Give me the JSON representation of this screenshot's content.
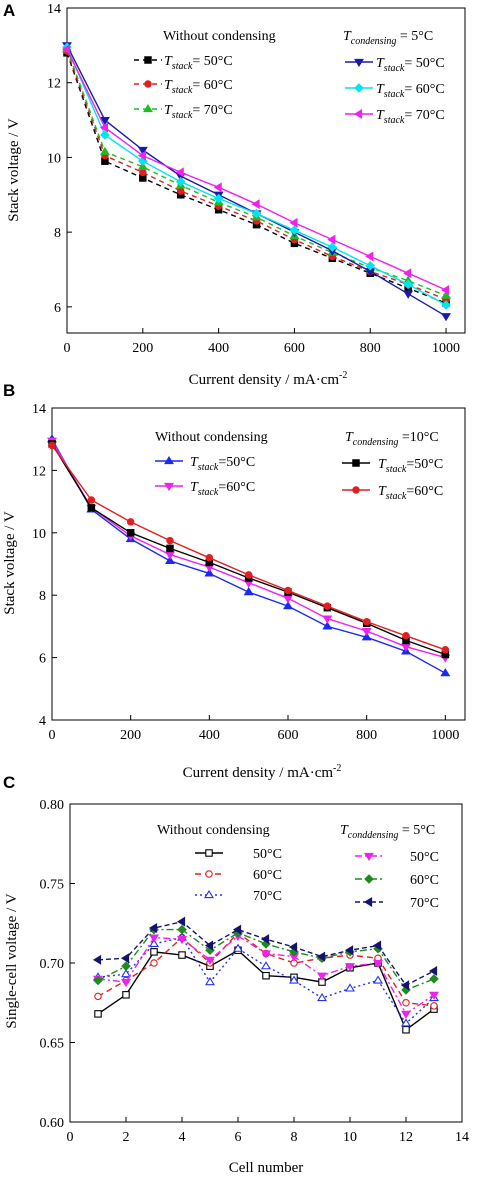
{
  "chart_data": [
    {
      "panel": "A",
      "type": "line",
      "xlabel": "Current density / mA·cm",
      "xlabel_sup": "-2",
      "ylabel": "Stack voltage / V",
      "xlim": [
        0,
        1050
      ],
      "ylim": [
        5.3,
        14
      ],
      "xticks": [
        0,
        200,
        400,
        600,
        800,
        1000
      ],
      "yticks": [
        6,
        8,
        10,
        12,
        14
      ],
      "x": [
        0,
        100,
        200,
        300,
        400,
        500,
        600,
        700,
        800,
        900,
        1000
      ],
      "legend_groups": [
        {
          "title": "Without condensing"
        },
        {
          "title_main": "T",
          "title_sub": "condensing",
          "title_value": " = 5°C"
        }
      ],
      "series": [
        {
          "name": "= 50°C",
          "name_prefix": "T",
          "name_sub": "stack",
          "group": 0,
          "color": "#000000",
          "dash": "5,4",
          "marker": "square",
          "fill": true,
          "values": [
            12.8,
            9.9,
            9.45,
            9.0,
            8.6,
            8.2,
            7.7,
            7.3,
            6.9,
            6.5,
            6.1
          ]
        },
        {
          "name": "= 60°C",
          "name_prefix": "T",
          "name_sub": "stack",
          "group": 0,
          "color": "#e02020",
          "dash": "5,4",
          "marker": "circle",
          "fill": true,
          "values": [
            12.85,
            10.05,
            9.6,
            9.1,
            8.7,
            8.3,
            7.8,
            7.35,
            6.95,
            6.6,
            6.2
          ]
        },
        {
          "name": "= 70°C",
          "name_prefix": "T",
          "name_sub": "stack",
          "group": 0,
          "color": "#22bb22",
          "dash": "5,4",
          "marker": "triangle-up",
          "fill": true,
          "values": [
            12.9,
            10.15,
            9.75,
            9.25,
            8.8,
            8.4,
            7.9,
            7.45,
            7.05,
            6.7,
            6.3
          ]
        },
        {
          "name": "= 50°C",
          "name_prefix": "T",
          "name_sub": "stack",
          "group": 1,
          "color": "#1a1aaa",
          "dash": "",
          "marker": "triangle-down",
          "fill": true,
          "values": [
            13.0,
            11.0,
            10.2,
            9.5,
            9.0,
            8.5,
            8.0,
            7.5,
            6.95,
            6.35,
            5.75
          ]
        },
        {
          "name": "= 60°C",
          "name_prefix": "T",
          "name_sub": "stack",
          "group": 1,
          "color": "#00e5ee",
          "dash": "",
          "marker": "diamond",
          "fill": true,
          "values": [
            12.95,
            10.6,
            9.9,
            9.35,
            8.9,
            8.5,
            8.05,
            7.6,
            7.1,
            6.6,
            6.05
          ]
        },
        {
          "name": "= 70°C",
          "name_prefix": "T",
          "name_sub": "stack",
          "group": 1,
          "color": "#ee22ee",
          "dash": "",
          "marker": "triangle-left",
          "fill": true,
          "values": [
            12.9,
            10.8,
            10.05,
            9.6,
            9.2,
            8.75,
            8.25,
            7.8,
            7.35,
            6.9,
            6.45
          ]
        }
      ]
    },
    {
      "panel": "B",
      "type": "line",
      "xlabel": "Current density / mA·cm",
      "xlabel_sup": "-2",
      "ylabel": "Stack voltage / V",
      "xlim": [
        0,
        1050
      ],
      "ylim": [
        4,
        14
      ],
      "xticks": [
        0,
        200,
        400,
        600,
        800,
        1000
      ],
      "yticks": [
        4,
        6,
        8,
        10,
        12,
        14
      ],
      "x": [
        0,
        100,
        200,
        300,
        400,
        500,
        600,
        700,
        800,
        900,
        1000
      ],
      "legend_groups": [
        {
          "title": "Without condensing"
        },
        {
          "title_main": "T",
          "title_sub": "condensing",
          "title_value": " =10°C"
        }
      ],
      "series": [
        {
          "name": "=50°C",
          "name_prefix": "T",
          "name_sub": "stack",
          "group": 0,
          "color": "#1a2aee",
          "dash": "",
          "marker": "triangle-up",
          "fill": true,
          "values": [
            13.0,
            10.75,
            9.8,
            9.1,
            8.7,
            8.1,
            7.65,
            7.0,
            6.65,
            6.2,
            5.5
          ]
        },
        {
          "name": "=60°C",
          "name_prefix": "T",
          "name_sub": "stack",
          "group": 0,
          "color": "#ee22ee",
          "dash": "",
          "marker": "triangle-down",
          "fill": true,
          "values": [
            12.95,
            10.8,
            9.9,
            9.3,
            8.9,
            8.4,
            7.9,
            7.25,
            6.85,
            6.35,
            6.0
          ]
        },
        {
          "name": "=50°C",
          "name_prefix": "T",
          "name_sub": "stack",
          "group": 1,
          "color": "#000000",
          "dash": "",
          "marker": "square",
          "fill": true,
          "values": [
            12.85,
            10.8,
            10.0,
            9.5,
            9.05,
            8.55,
            8.1,
            7.6,
            7.1,
            6.55,
            6.1
          ]
        },
        {
          "name": "=60°C",
          "name_prefix": "T",
          "name_sub": "stack",
          "group": 1,
          "color": "#e02020",
          "dash": "",
          "marker": "circle",
          "fill": true,
          "values": [
            12.8,
            11.05,
            10.35,
            9.75,
            9.2,
            8.65,
            8.15,
            7.65,
            7.15,
            6.7,
            6.25
          ]
        }
      ]
    },
    {
      "panel": "C",
      "type": "line",
      "xlabel": "Cell number",
      "ylabel": "Single-cell voltage / V",
      "xlim": [
        0,
        14
      ],
      "ylim": [
        0.6,
        0.8
      ],
      "xticks": [
        0,
        2,
        4,
        6,
        8,
        10,
        12,
        14
      ],
      "yticks": [
        0.6,
        0.65,
        0.7,
        0.75,
        0.8
      ],
      "x": [
        1,
        2,
        3,
        4,
        5,
        6,
        7,
        8,
        9,
        10,
        11,
        12,
        13
      ],
      "legend_groups": [
        {
          "title": "Without condensing"
        },
        {
          "title_main": "T",
          "title_sub": "conddensing",
          "title_value": " = 5°C"
        }
      ],
      "series": [
        {
          "name": "50°C",
          "group": 0,
          "color": "#000000",
          "dash": "",
          "marker": "square",
          "fill": false,
          "values": [
            0.668,
            0.68,
            0.707,
            0.705,
            0.698,
            0.708,
            0.692,
            0.691,
            0.688,
            0.697,
            0.7,
            0.658,
            0.671
          ]
        },
        {
          "name": "60°C",
          "group": 0,
          "color": "#e02020",
          "dash": "6,4",
          "marker": "circle",
          "fill": false,
          "values": [
            0.679,
            0.689,
            0.7,
            0.716,
            0.7,
            0.719,
            0.706,
            0.7,
            0.703,
            0.705,
            0.703,
            0.675,
            0.673
          ]
        },
        {
          "name": "70°C",
          "group": 0,
          "color": "#2233ee",
          "dash": "2,3",
          "marker": "triangle-up",
          "fill": false,
          "values": [
            0.691,
            0.693,
            0.712,
            0.716,
            0.688,
            0.709,
            0.698,
            0.689,
            0.678,
            0.684,
            0.689,
            0.662,
            0.678
          ]
        },
        {
          "name": "50°C",
          "group": 1,
          "color": "#ee22ee",
          "dash": "7,3,2,3",
          "marker": "triangle-down",
          "fill": true,
          "values": [
            0.69,
            0.688,
            0.716,
            0.715,
            0.702,
            0.717,
            0.706,
            0.704,
            0.692,
            0.698,
            0.7,
            0.668,
            0.68
          ]
        },
        {
          "name": "60°C",
          "group": 1,
          "color": "#1f8a1f",
          "dash": "7,3,2,3",
          "marker": "diamond",
          "fill": true,
          "values": [
            0.689,
            0.698,
            0.721,
            0.721,
            0.708,
            0.719,
            0.712,
            0.707,
            0.703,
            0.707,
            0.709,
            0.683,
            0.69
          ]
        },
        {
          "name": "70°C",
          "group": 1,
          "color": "#14146e",
          "dash": "5,3",
          "marker": "triangle-left",
          "fill": true,
          "values": [
            0.702,
            0.703,
            0.722,
            0.726,
            0.711,
            0.721,
            0.715,
            0.71,
            0.704,
            0.708,
            0.711,
            0.686,
            0.695
          ]
        }
      ]
    }
  ]
}
